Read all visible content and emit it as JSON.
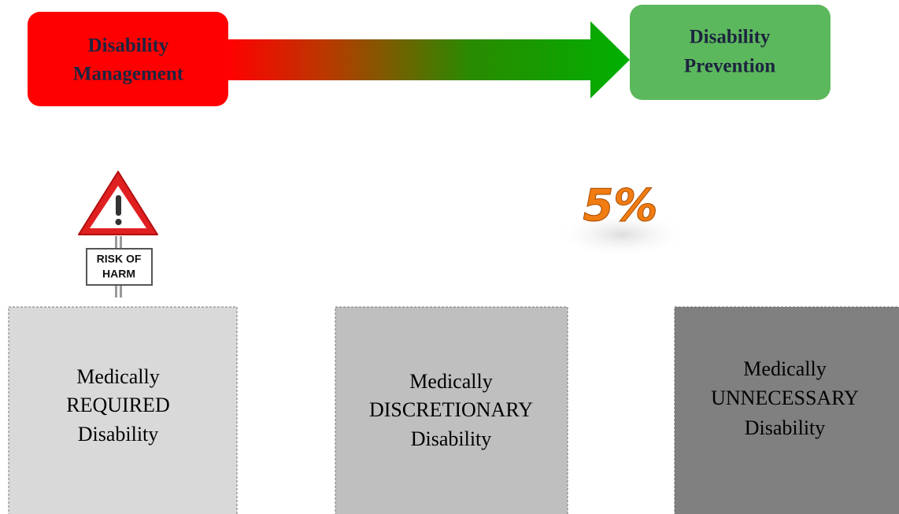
{
  "header": {
    "start": {
      "lines": [
        "Disability",
        "Management"
      ]
    },
    "end": {
      "lines": [
        "Disability",
        "Prevention"
      ]
    }
  },
  "sign": {
    "lines": [
      "RISK OF",
      "HARM"
    ]
  },
  "badge": "5%",
  "boxes": [
    {
      "lines": [
        "Medically",
        "REQUIRED",
        "Disability"
      ]
    },
    {
      "lines": [
        "Medically",
        "DISCRETIONARY",
        "Disability"
      ]
    },
    {
      "lines": [
        "Medically",
        "UNNECESSARY",
        "Disability"
      ]
    }
  ]
}
